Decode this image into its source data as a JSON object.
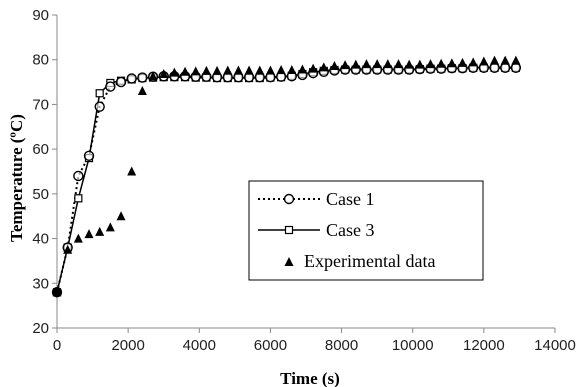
{
  "chart_data": {
    "type": "scatter",
    "title": "",
    "xlabel": "Time (s)",
    "ylabel": "Temperature (ºC)",
    "xlim": [
      0,
      14000
    ],
    "ylim": [
      20,
      90
    ],
    "xticks": [
      0,
      2000,
      4000,
      6000,
      8000,
      10000,
      12000,
      14000
    ],
    "yticks": [
      20,
      30,
      40,
      50,
      60,
      70,
      80,
      90
    ],
    "legend_position": "center-right",
    "grid": false,
    "series": [
      {
        "name": "Case 1",
        "style": "dotted-line-circle-markers",
        "color": "#000000",
        "x": [
          0,
          300,
          600,
          900,
          1200,
          1500,
          1800,
          2100,
          2400,
          2700,
          3000,
          3300,
          3600,
          3900,
          4200,
          4500,
          4800,
          5100,
          5400,
          5700,
          6000,
          6300,
          6600,
          6900,
          7200,
          7500,
          7800,
          8100,
          8400,
          8700,
          9000,
          9300,
          9600,
          9900,
          10200,
          10500,
          10800,
          11100,
          11400,
          11700,
          12000,
          12300,
          12600,
          12900
        ],
        "y": [
          28,
          38,
          54,
          58.5,
          69.5,
          74,
          75,
          75.8,
          76,
          76.2,
          76.3,
          76.3,
          76.3,
          76.2,
          76.2,
          76.1,
          76.1,
          76.1,
          76.1,
          76.1,
          76.1,
          76.2,
          76.3,
          76.6,
          77,
          77.3,
          77.6,
          77.8,
          77.8,
          77.8,
          77.8,
          77.8,
          77.8,
          77.8,
          77.9,
          78,
          78,
          78.1,
          78.1,
          78.2,
          78.2,
          78.2,
          78.2,
          78.2
        ]
      },
      {
        "name": "Case 3",
        "style": "solid-line-square-markers",
        "color": "#000000",
        "x": [
          0,
          300,
          600,
          900,
          1200,
          1500,
          1800,
          2100,
          2400,
          2700,
          3000,
          3300,
          3600,
          3900,
          4200,
          4500,
          4800,
          5100,
          5400,
          5700,
          6000,
          6300,
          6600,
          6900,
          7200,
          7500,
          7800,
          8100,
          8400,
          8700,
          9000,
          9300,
          9600,
          9900,
          10200,
          10500,
          10800,
          11100,
          11400,
          11700,
          12000,
          12300,
          12600,
          12900
        ],
        "y": [
          28,
          38,
          49,
          58,
          72.5,
          74.8,
          75.3,
          75.6,
          75.9,
          76,
          76.1,
          76.1,
          76.1,
          76,
          76,
          75.9,
          75.9,
          75.9,
          75.9,
          75.9,
          76,
          76.1,
          76.4,
          76.8,
          77.2,
          77.5,
          77.7,
          77.8,
          77.8,
          77.8,
          77.8,
          77.8,
          77.8,
          77.8,
          77.9,
          78,
          78,
          78.1,
          78.1,
          78.2,
          78.2,
          78.2,
          78.2,
          78.2
        ]
      },
      {
        "name": "Experimental data",
        "style": "filled-triangle-markers",
        "color": "#000000",
        "x": [
          0,
          300,
          600,
          900,
          1200,
          1500,
          1800,
          2100,
          2400,
          2700,
          3000,
          3300,
          3600,
          3900,
          4200,
          4500,
          4800,
          5100,
          5400,
          5700,
          6000,
          6300,
          6600,
          6900,
          7200,
          7500,
          7800,
          8100,
          8400,
          8700,
          9000,
          9300,
          9600,
          9900,
          10200,
          10500,
          10800,
          11100,
          11400,
          11700,
          12000,
          12300,
          12600,
          12900
        ],
        "y": [
          28,
          37.5,
          40,
          41,
          41.5,
          42.5,
          45,
          55,
          73,
          76.3,
          76.8,
          77.1,
          77.3,
          77.4,
          77.5,
          77.5,
          77.6,
          77.6,
          77.6,
          77.6,
          77.6,
          77.7,
          77.7,
          77.8,
          78,
          78.3,
          78.6,
          78.8,
          78.9,
          79,
          79,
          79,
          79,
          78.9,
          78.9,
          79,
          79.1,
          79.2,
          79.3,
          79.4,
          79.6,
          79.8,
          79.8,
          79.8
        ]
      }
    ]
  }
}
